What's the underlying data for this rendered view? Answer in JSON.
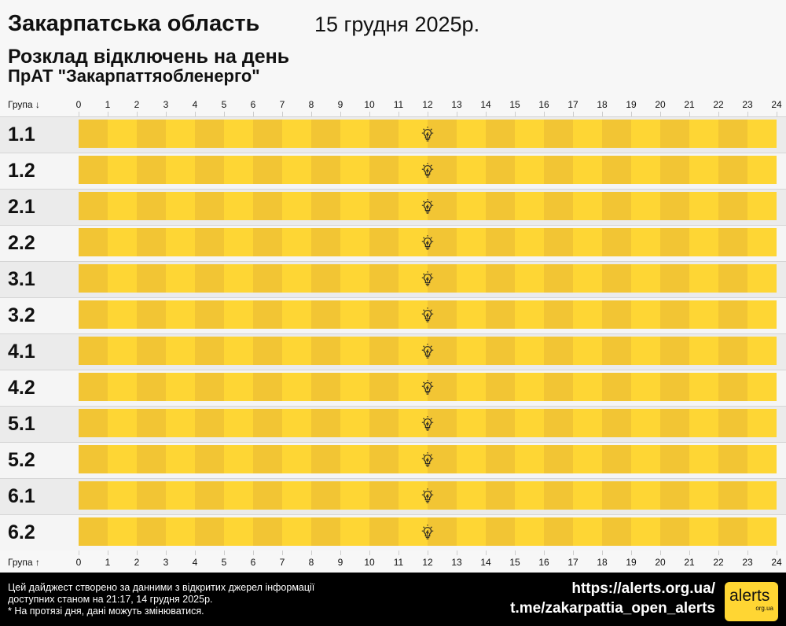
{
  "header": {
    "region": "Закарпатська область",
    "date": "15 грудня 2025р.",
    "subtitle": "Розклад відключень на день",
    "company": "ПрАТ \"Закарпаттяобленерго\""
  },
  "axis": {
    "group_label_top": "Група ↓",
    "group_label_bottom": "Група ↑",
    "hours": [
      "0",
      "1",
      "2",
      "3",
      "4",
      "5",
      "6",
      "7",
      "8",
      "9",
      "10",
      "11",
      "12",
      "13",
      "14",
      "15",
      "16",
      "17",
      "18",
      "19",
      "20",
      "21",
      "22",
      "23",
      "24"
    ]
  },
  "groups": [
    {
      "label": "1.1",
      "status": "power-on",
      "marker_hour": 12
    },
    {
      "label": "1.2",
      "status": "power-on",
      "marker_hour": 12
    },
    {
      "label": "2.1",
      "status": "power-on",
      "marker_hour": 12
    },
    {
      "label": "2.2",
      "status": "power-on",
      "marker_hour": 12
    },
    {
      "label": "3.1",
      "status": "power-on",
      "marker_hour": 12
    },
    {
      "label": "3.2",
      "status": "power-on",
      "marker_hour": 12
    },
    {
      "label": "4.1",
      "status": "power-on",
      "marker_hour": 12
    },
    {
      "label": "4.2",
      "status": "power-on",
      "marker_hour": 12
    },
    {
      "label": "5.1",
      "status": "power-on",
      "marker_hour": 12
    },
    {
      "label": "5.2",
      "status": "power-on",
      "marker_hour": 12
    },
    {
      "label": "6.1",
      "status": "power-on",
      "marker_hour": 12
    },
    {
      "label": "6.2",
      "status": "power-on",
      "marker_hour": 12
    }
  ],
  "colors": {
    "on_even": "#f2c534",
    "on_odd": "#fed634",
    "row_a": "#ebebeb",
    "row_b": "#f5f5f5"
  },
  "marker_icon": "lightbulb-icon",
  "footer": {
    "line1": "Цей дайджест створено за данними з відкритих джерел інформації",
    "line2": "доступних станом на 21:17, 14 грудня 2025р.",
    "line3": "* На протязі дня, дані можуть змінюватися.",
    "site": "https://alerts.org.ua/",
    "telegram": "t.me/zakarpattia_open_alerts",
    "logo_text": "alerts",
    "logo_sub": "org.ua"
  }
}
